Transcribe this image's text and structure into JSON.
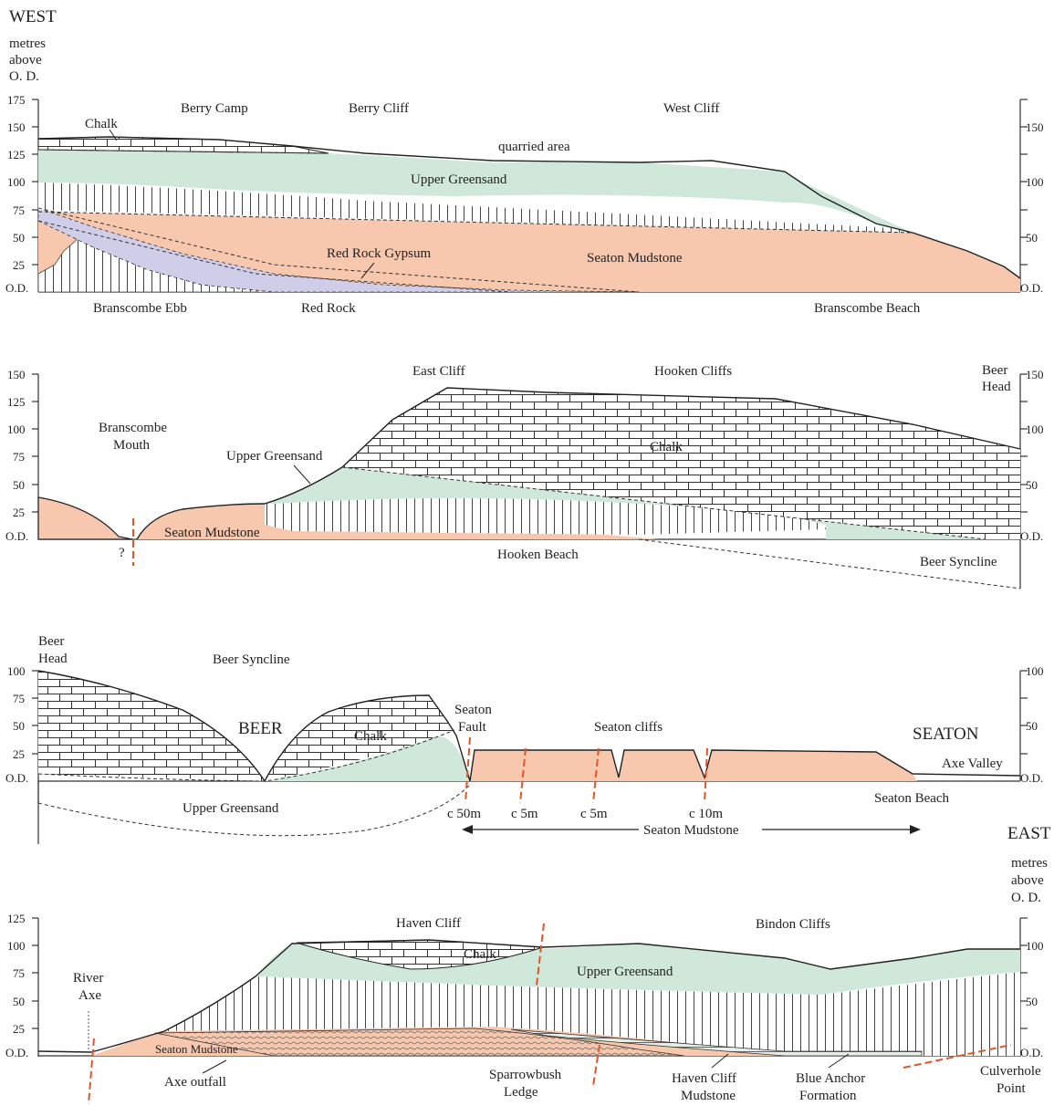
{
  "orientation": {
    "west": "WEST",
    "east": "EAST"
  },
  "axis_unit": [
    "metres",
    "above",
    "O. D."
  ],
  "colors": {
    "mudstone": "#f7c8ae",
    "greensand": "#cfe8d9",
    "gypsum": "#cfcde8",
    "chalk_bg": "#ffffff",
    "fault": "#e0552a"
  },
  "panel1": {
    "ticks_left": [
      "175",
      "150",
      "125",
      "100",
      "75",
      "50",
      "25",
      "O.D."
    ],
    "ticks_right": [
      "150",
      "100",
      "50",
      "O.D."
    ],
    "labels": {
      "berry_camp": "Berry Camp",
      "berry_cliff": "Berry Cliff",
      "west_cliff": "West Cliff",
      "chalk": "Chalk",
      "quarried": "quarried area",
      "upper_greensand": "Upper Greensand",
      "red_rock_gypsum": "Red Rock Gypsum",
      "seaton_mudstone": "Seaton Mudstone",
      "branscombe_ebb": "Branscombe Ebb",
      "red_rock": "Red Rock",
      "branscombe_beach": "Branscombe Beach"
    }
  },
  "panel2": {
    "ticks_left": [
      "150",
      "125",
      "100",
      "75",
      "50",
      "25",
      "O.D."
    ],
    "ticks_right": [
      "150",
      "100",
      "50",
      "O.D."
    ],
    "labels": {
      "east_cliff": "East Cliff",
      "hooken_cliffs": "Hooken Cliffs",
      "beer_head_1": "Beer",
      "beer_head_2": "Head",
      "branscombe_mouth_1": "Branscombe",
      "branscombe_mouth_2": "Mouth",
      "upper_greensand": "Upper Greensand",
      "chalk": "Chalk",
      "seaton_mudstone": "Seaton Mudstone",
      "hooken_beach": "Hooken Beach",
      "beer_syncline": "Beer Syncline",
      "fault_query": "?"
    }
  },
  "panel3": {
    "ticks_left": [
      "100",
      "75",
      "50",
      "25",
      "O.D."
    ],
    "ticks_right": [
      "100",
      "50",
      "O.D."
    ],
    "labels": {
      "beer_head_1": "Beer",
      "beer_head_2": "Head",
      "beer_syncline": "Beer Syncline",
      "beer": "BEER",
      "chalk": "Chalk",
      "seaton_fault_1": "Seaton",
      "seaton_fault_2": "Fault",
      "seaton_cliffs": "Seaton cliffs",
      "seaton": "SEATON",
      "axe_valley": "Axe Valley",
      "upper_greensand": "Upper Greensand",
      "seaton_beach": "Seaton Beach",
      "seaton_mudstone": "Seaton Mudstone",
      "throws": [
        "c 50m",
        "c 5m",
        "c 5m",
        "c 10m"
      ]
    }
  },
  "panel4": {
    "ticks_left": [
      "125",
      "100",
      "75",
      "50",
      "25",
      "O.D."
    ],
    "ticks_right": [
      "100",
      "50",
      "O.D."
    ],
    "labels": {
      "haven_cliff": "Haven Cliff",
      "bindon_cliffs": "Bindon Cliffs",
      "chalk": "Chalk",
      "upper_greensand": "Upper Greensand",
      "river_axe_1": "River",
      "river_axe_2": "Axe",
      "seaton_mudstone": "Seaton Mudstone",
      "axe_outfall": "Axe outfall",
      "sparrowbush_1": "Sparrowbush",
      "sparrowbush_2": "Ledge",
      "haven_mudstone_1": "Haven Cliff",
      "haven_mudstone_2": "Mudstone",
      "blue_anchor_1": "Blue Anchor",
      "blue_anchor_2": "Formation",
      "culverhole_1": "Culverhole",
      "culverhole_2": "Point"
    }
  }
}
